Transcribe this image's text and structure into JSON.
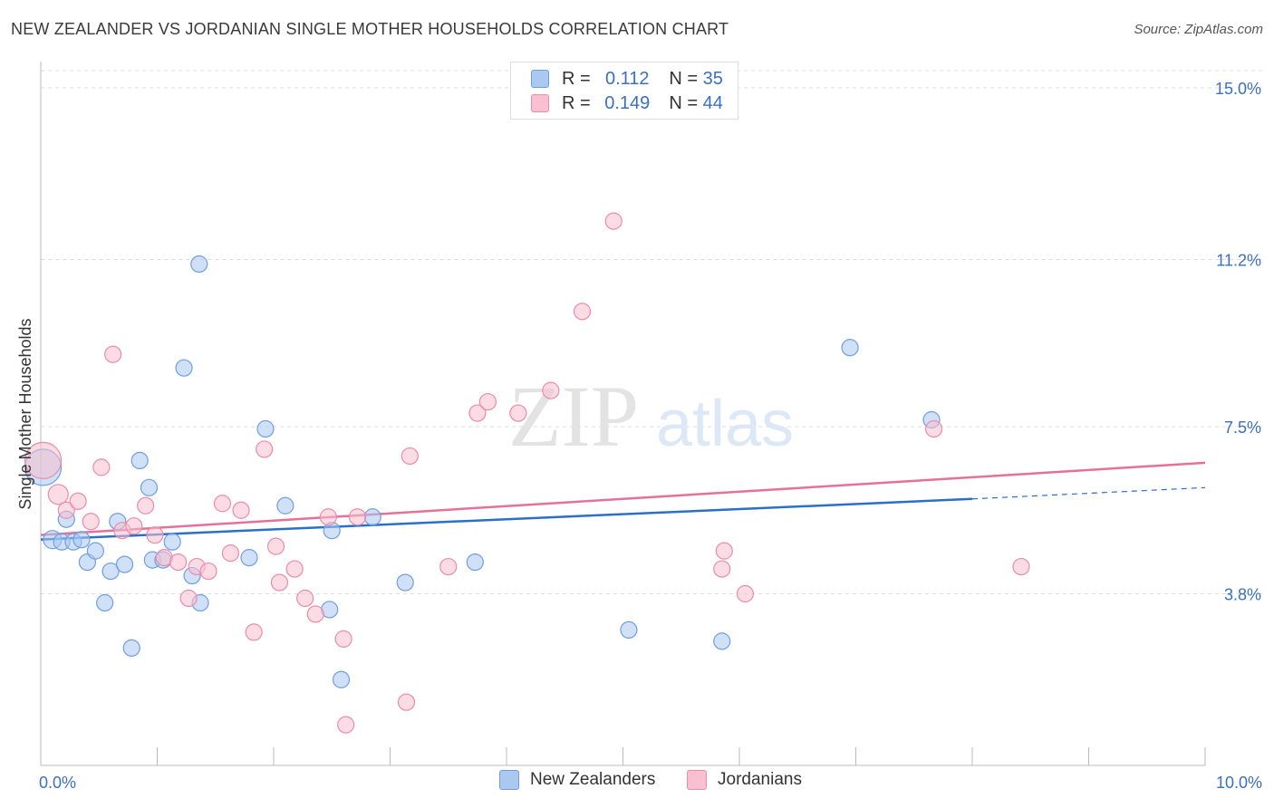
{
  "title": "NEW ZEALANDER VS JORDANIAN SINGLE MOTHER HOUSEHOLDS CORRELATION CHART",
  "source": "Source: ZipAtlas.com",
  "watermark": {
    "zip": "ZIP",
    "atlas": "atlas"
  },
  "legend": {
    "r_label": "R =",
    "n_label": "N =",
    "series": [
      {
        "r": "0.112",
        "n": "35",
        "fill": "#aac8f0",
        "stroke": "#6f9ee0"
      },
      {
        "r": "0.149",
        "n": "44",
        "fill": "#f8c0d0",
        "stroke": "#ec8aaa"
      }
    ]
  },
  "bottom_legend": [
    "New Zealanders",
    "Jordanians"
  ],
  "chart_data": {
    "type": "scatter",
    "title": "NEW ZEALANDER VS JORDANIAN SINGLE MOTHER HOUSEHOLDS CORRELATION CHART",
    "xlabel": "",
    "ylabel": "Single Mother Households",
    "xlim": [
      0,
      10
    ],
    "ylim": [
      0,
      15.5
    ],
    "x_tick_labels": [
      "0.0%",
      "10.0%"
    ],
    "y_ticks": [
      3.8,
      7.5,
      11.2,
      15.0
    ],
    "y_tick_labels": [
      "3.8%",
      "7.5%",
      "11.2%",
      "15.0%"
    ],
    "grid": true,
    "legend_position": "top-center",
    "series": [
      {
        "name": "New Zealanders",
        "color": "#6f9ee0",
        "fill": "#aac8f0",
        "line_color": "#2a6fcc",
        "trend": {
          "x0": 0,
          "y0": 5.0,
          "x1": 8.0,
          "y1": 5.9,
          "dash_to_x": 10.0,
          "dash_to_y": 6.15
        },
        "points": [
          [
            0.02,
            6.6,
            20
          ],
          [
            0.1,
            5.0,
            10
          ],
          [
            0.18,
            4.95,
            9
          ],
          [
            0.22,
            5.45,
            9
          ],
          [
            0.28,
            4.95,
            9
          ],
          [
            0.35,
            5.0,
            9
          ],
          [
            0.4,
            4.5,
            9
          ],
          [
            0.47,
            4.75,
            9
          ],
          [
            0.55,
            3.6,
            9
          ],
          [
            0.6,
            4.3,
            9
          ],
          [
            0.66,
            5.4,
            9
          ],
          [
            0.72,
            4.45,
            9
          ],
          [
            0.78,
            2.6,
            9
          ],
          [
            0.85,
            6.75,
            9
          ],
          [
            0.93,
            6.15,
            9
          ],
          [
            0.96,
            4.55,
            9
          ],
          [
            1.05,
            4.55,
            9
          ],
          [
            1.13,
            4.95,
            9
          ],
          [
            1.23,
            8.8,
            9
          ],
          [
            1.3,
            4.2,
            9
          ],
          [
            1.37,
            3.6,
            9
          ],
          [
            1.36,
            11.1,
            9
          ],
          [
            1.79,
            4.6,
            9
          ],
          [
            1.93,
            7.45,
            9
          ],
          [
            2.1,
            5.75,
            9
          ],
          [
            2.48,
            3.45,
            9
          ],
          [
            2.5,
            5.2,
            9
          ],
          [
            2.58,
            1.9,
            9
          ],
          [
            2.85,
            5.5,
            9
          ],
          [
            3.13,
            4.05,
            9
          ],
          [
            3.73,
            4.5,
            9
          ],
          [
            5.05,
            3.0,
            9
          ],
          [
            5.85,
            2.75,
            9
          ],
          [
            6.95,
            9.25,
            9
          ],
          [
            7.65,
            7.65,
            9
          ]
        ]
      },
      {
        "name": "Jordanians",
        "color": "#ec8aaa",
        "fill": "#f8c0d0",
        "line_color": "#e6709a",
        "trend": {
          "x0": 0,
          "y0": 5.1,
          "x1": 10.0,
          "y1": 6.7
        },
        "points": [
          [
            0.02,
            6.75,
            20
          ],
          [
            0.15,
            6.0,
            11
          ],
          [
            0.22,
            5.65,
            9
          ],
          [
            0.32,
            5.85,
            9
          ],
          [
            0.43,
            5.4,
            9
          ],
          [
            0.52,
            6.6,
            9
          ],
          [
            0.62,
            9.1,
            9
          ],
          [
            0.7,
            5.2,
            9
          ],
          [
            0.8,
            5.3,
            9
          ],
          [
            0.9,
            5.75,
            9
          ],
          [
            0.98,
            5.1,
            9
          ],
          [
            1.06,
            4.6,
            9
          ],
          [
            1.18,
            4.5,
            9
          ],
          [
            1.27,
            3.7,
            9
          ],
          [
            1.34,
            4.4,
            9
          ],
          [
            1.44,
            4.3,
            9
          ],
          [
            1.56,
            5.8,
            9
          ],
          [
            1.63,
            4.7,
            9
          ],
          [
            1.72,
            5.65,
            9
          ],
          [
            1.83,
            2.95,
            9
          ],
          [
            1.92,
            7.0,
            9
          ],
          [
            2.02,
            4.85,
            9
          ],
          [
            2.05,
            4.05,
            9
          ],
          [
            2.18,
            4.35,
            9
          ],
          [
            2.27,
            3.7,
            9
          ],
          [
            2.36,
            3.35,
            9
          ],
          [
            2.47,
            5.5,
            9
          ],
          [
            2.6,
            2.8,
            9
          ],
          [
            2.62,
            0.9,
            9
          ],
          [
            2.72,
            5.5,
            9
          ],
          [
            3.14,
            1.4,
            9
          ],
          [
            3.17,
            6.85,
            9
          ],
          [
            3.5,
            4.4,
            9
          ],
          [
            3.75,
            7.8,
            9
          ],
          [
            3.84,
            8.05,
            9
          ],
          [
            4.1,
            7.8,
            9
          ],
          [
            4.38,
            8.3,
            9
          ],
          [
            4.65,
            10.05,
            9
          ],
          [
            4.92,
            12.05,
            9
          ],
          [
            5.85,
            4.35,
            9
          ],
          [
            5.87,
            4.75,
            9
          ],
          [
            6.05,
            3.8,
            9
          ],
          [
            7.67,
            7.45,
            9
          ],
          [
            8.42,
            4.4,
            9
          ]
        ]
      }
    ]
  }
}
